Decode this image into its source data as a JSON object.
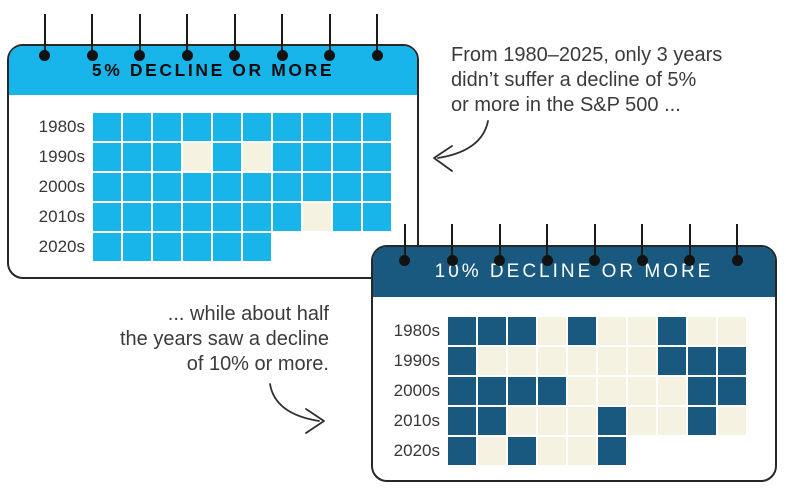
{
  "annotations": {
    "note_5pct": {
      "lines": [
        "From 1980–2025, only 3 years",
        "didn’t suffer a decline of 5%",
        "or more in the S&P 500 ..."
      ]
    },
    "note_10pct": {
      "lines": [
        "... while about half",
        "the years saw a decline",
        "of 10% or more."
      ]
    }
  },
  "colors": {
    "cyan": "#17B5EA",
    "dark_blue": "#19597F",
    "cream": "#F6F2E2",
    "card_border": "#2a2627",
    "pin_black": "#121212"
  },
  "chart_data": [
    {
      "type": "heatmap",
      "title": "5% DECLINE OR MORE",
      "categories": [
        "1980s",
        "1990s",
        "2000s",
        "2010s",
        "2020s"
      ],
      "cell_meaning": "1 = year with a 5% or greater S&P 500 decline, 0 = year without",
      "series": [
        {
          "name": "1980s",
          "values": [
            1,
            1,
            1,
            1,
            1,
            1,
            1,
            1,
            1,
            1
          ]
        },
        {
          "name": "1990s",
          "values": [
            1,
            1,
            1,
            0,
            1,
            0,
            1,
            1,
            1,
            1
          ]
        },
        {
          "name": "2000s",
          "values": [
            1,
            1,
            1,
            1,
            1,
            1,
            1,
            1,
            1,
            1
          ]
        },
        {
          "name": "2010s",
          "values": [
            1,
            1,
            1,
            1,
            1,
            1,
            1,
            0,
            1,
            1
          ]
        },
        {
          "name": "2020s",
          "values": [
            1,
            1,
            1,
            1,
            1,
            1
          ]
        }
      ],
      "fill_color": "#17B5EA",
      "empty_color": "#F6F2E2",
      "header_color": "#17B5EA"
    },
    {
      "type": "heatmap",
      "title": "10% DECLINE OR MORE",
      "categories": [
        "1980s",
        "1990s",
        "2000s",
        "2010s",
        "2020s"
      ],
      "cell_meaning": "1 = year with a 10% or greater S&P 500 decline, 0 = year without",
      "series": [
        {
          "name": "1980s",
          "values": [
            1,
            1,
            1,
            0,
            1,
            0,
            0,
            1,
            0,
            0
          ]
        },
        {
          "name": "1990s",
          "values": [
            1,
            0,
            0,
            0,
            0,
            0,
            0,
            1,
            1,
            1
          ]
        },
        {
          "name": "2000s",
          "values": [
            1,
            1,
            1,
            1,
            0,
            0,
            0,
            0,
            1,
            1
          ]
        },
        {
          "name": "2010s",
          "values": [
            1,
            1,
            0,
            0,
            0,
            1,
            0,
            0,
            1,
            0
          ]
        },
        {
          "name": "2020s",
          "values": [
            1,
            0,
            1,
            0,
            0,
            1
          ]
        }
      ],
      "fill_color": "#19597F",
      "empty_color": "#F6F2E2",
      "header_color": "#19597F"
    }
  ]
}
